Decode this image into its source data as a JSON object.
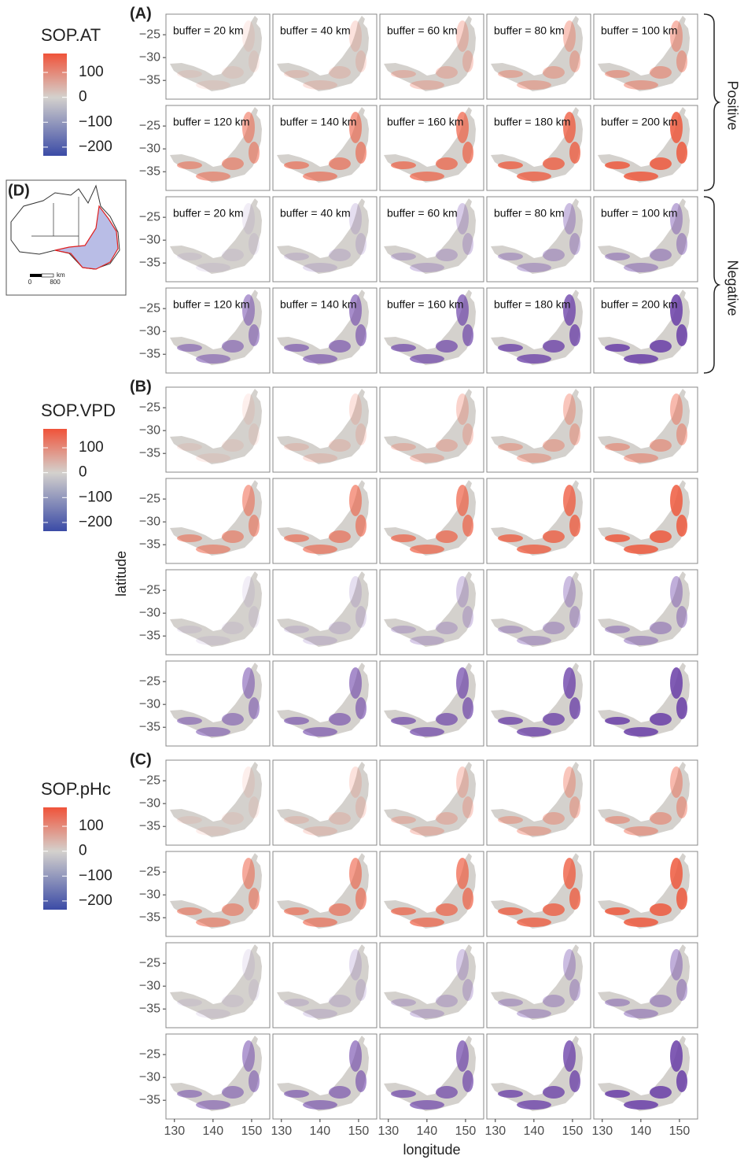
{
  "panels": [
    {
      "label": "(A)",
      "legend": {
        "title": "SOP.AT",
        "ticks": [
          100,
          0,
          {
            "value": -100,
            "label": "−100"
          },
          {
            "value": -200,
            "label": "−200"
          }
        ],
        "lim": [
          -235,
          176
        ]
      },
      "facet_labels": [
        "buffer = 20 km",
        "buffer = 40 km",
        "buffer = 60 km",
        "buffer = 80 km",
        "buffer = 100 km",
        "buffer = 120 km",
        "buffer = 140 km",
        "buffer = 160 km",
        "buffer = 180 km",
        "buffer = 200 km",
        "buffer = 20 km",
        "buffer = 40 km",
        "buffer = 60 km",
        "buffer = 80 km",
        "buffer = 100 km",
        "buffer = 120 km",
        "buffer = 140 km",
        "buffer = 160 km",
        "buffer = 180 km",
        "buffer = 200 km"
      ]
    },
    {
      "label": "(B)",
      "legend": {
        "title": "SOP.VPD",
        "ticks": [
          100,
          0,
          {
            "value": -100,
            "label": "−100"
          },
          {
            "value": -200,
            "label": "−200"
          }
        ],
        "lim": [
          -235,
          176
        ]
      }
    },
    {
      "label": "(C)",
      "legend": {
        "title": "SOP.pHc",
        "ticks": [
          100,
          0,
          {
            "value": -100,
            "label": "−100"
          },
          {
            "value": -200,
            "label": "−200"
          }
        ],
        "lim": [
          -235,
          176
        ]
      }
    }
  ],
  "facets": {
    "xlim": [
      127.8,
      154.7
    ],
    "ylim": [
      -39.1,
      -20.5
    ],
    "xticks": [
      130,
      140,
      150
    ],
    "yticks": [
      {
        "value": -25,
        "label": "−25"
      },
      {
        "value": -30,
        "label": "−30"
      },
      {
        "value": -35,
        "label": "−35"
      }
    ]
  },
  "x_label": "longitude",
  "y_label": "latitude",
  "strip_labels": [
    "Positive",
    "Negative"
  ],
  "inset": {
    "label": "(D)",
    "scale_labels": [
      "0",
      "800"
    ],
    "unit": "km"
  },
  "colors": {
    "low": "#3b4ba6",
    "mid": "#d4d1cd",
    "high": "#f0533a",
    "negative": "#6a3fa8",
    "positive": "#ef5a3e"
  }
}
